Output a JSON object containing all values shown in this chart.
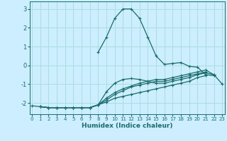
{
  "title": "",
  "xlabel": "Humidex (Indice chaleur)",
  "bg_color": "#cceeff",
  "grid_color": "#aadddd",
  "line_color": "#1a6b6b",
  "x_ticks": [
    0,
    1,
    2,
    3,
    4,
    5,
    6,
    7,
    8,
    9,
    10,
    11,
    12,
    13,
    14,
    15,
    16,
    17,
    18,
    19,
    20,
    21,
    22,
    23
  ],
  "y_ticks": [
    -2,
    -1,
    0,
    1,
    2,
    3
  ],
  "ylim": [
    -2.6,
    3.4
  ],
  "xlim": [
    -0.3,
    23.3
  ],
  "series": [
    [
      null,
      null,
      null,
      null,
      null,
      null,
      null,
      null,
      0.7,
      1.5,
      2.5,
      3.0,
      3.0,
      2.5,
      1.5,
      0.5,
      0.05,
      0.1,
      0.15,
      -0.05,
      -0.1,
      -0.5,
      -0.55,
      null
    ],
    [
      null,
      -2.2,
      -2.25,
      -2.25,
      -2.25,
      -2.25,
      -2.25,
      -2.25,
      -2.1,
      -1.4,
      -0.95,
      -0.75,
      -0.7,
      -0.75,
      -0.85,
      -0.95,
      -0.95,
      -0.85,
      -0.75,
      -0.65,
      -0.5,
      -0.4,
      -0.5,
      -1.0
    ],
    [
      null,
      -2.2,
      -2.25,
      -2.25,
      -2.25,
      -2.25,
      -2.25,
      -2.25,
      -2.1,
      -1.75,
      -1.45,
      -1.25,
      -1.1,
      -0.95,
      -0.85,
      -0.75,
      -0.75,
      -0.65,
      -0.55,
      -0.45,
      -0.35,
      -0.25,
      -0.5,
      null
    ],
    [
      null,
      -2.2,
      -2.25,
      -2.25,
      -2.25,
      -2.25,
      -2.25,
      -2.25,
      -2.1,
      -1.85,
      -1.55,
      -1.35,
      -1.15,
      -1.05,
      -0.95,
      -0.85,
      -0.85,
      -0.75,
      -0.65,
      -0.55,
      -0.45,
      -0.35,
      null,
      null
    ],
    [
      -2.15,
      -2.2,
      -2.25,
      -2.25,
      -2.25,
      -2.25,
      -2.25,
      -2.25,
      -2.1,
      -1.95,
      -1.75,
      -1.65,
      -1.55,
      -1.45,
      -1.35,
      -1.25,
      -1.15,
      -1.05,
      -0.95,
      -0.85,
      -0.65,
      -0.55,
      null,
      null
    ]
  ]
}
